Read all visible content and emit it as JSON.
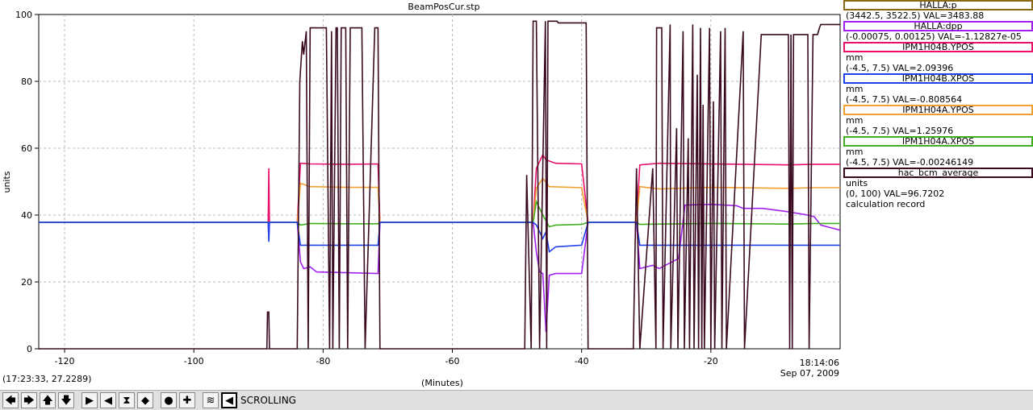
{
  "window": {
    "title": "BeamPosCur.stp"
  },
  "cursor_readout": "(17:23:33, 27.2289)",
  "time": {
    "clock": "18:14:06",
    "date": "Sep 07, 2009"
  },
  "legend": [
    {
      "name": "HALLA:p",
      "color": "#8b6914",
      "lines": [
        "(3442.5, 3522.5) VAL=3483.88"
      ]
    },
    {
      "name": "HALLA:dpp",
      "color": "#a020f0",
      "lines": [
        "(-0.00075, 0.00125) VAL=-1.12827e-05"
      ]
    },
    {
      "name": "IPM1H04B.YPOS",
      "color": "#e8106a",
      "lines": [
        "mm",
        "(-4.5, 7.5) VAL=2.09396"
      ]
    },
    {
      "name": "IPM1H04B.XPOS",
      "color": "#2040e8",
      "lines": [
        "mm",
        "(-4.5, 7.5) VAL=-0.808564"
      ]
    },
    {
      "name": "IPM1H04A.YPOS",
      "color": "#f0a030",
      "lines": [
        "mm",
        "(-4.5, 7.5) VAL=1.25976"
      ]
    },
    {
      "name": "IPM1H04A.XPOS",
      "color": "#40b020",
      "lines": [
        "mm",
        "(-4.5, 7.5) VAL=-0.00246149"
      ]
    },
    {
      "name": "hac_bcm_average",
      "color": "#3a0a20",
      "lines": [
        "units",
        "(0, 100) VAL=96.7202",
        "calculation record"
      ]
    }
  ],
  "toolbar": {
    "buttons": [
      "arrow-left-icon",
      "arrow-right-icon",
      "arrow-up-icon",
      "arrow-down-icon",
      "zoom-in-x-icon",
      "zoom-out-x-icon",
      "zoom-in-y-icon",
      "zoom-out-y-icon",
      "circle-icon",
      "plus-icon",
      "autoscale-icon",
      "scroll-icon"
    ],
    "mode_label": "SCROLLING"
  },
  "chart_data": {
    "type": "line",
    "title": "BeamPosCur.stp",
    "xlabel": "(Minutes)",
    "ylabel": "units",
    "xlim": [
      -124,
      0
    ],
    "ylim": [
      0,
      100
    ],
    "xticks": [
      -120,
      -100,
      -80,
      -60,
      -40,
      -20
    ],
    "yticks": [
      0,
      20,
      40,
      60,
      80,
      100
    ],
    "grid": true,
    "legend_position": "right",
    "series": [
      {
        "name": "HALLA:dpp",
        "color": "#a020f0",
        "x": [
          -124,
          -88.5,
          -88.4,
          -88.3,
          -84,
          -83.5,
          -83,
          -82,
          -81,
          -71.5,
          -71.2,
          -47.5,
          -47,
          -46.5,
          -46,
          -45.5,
          -45,
          -44,
          -40,
          -39,
          -31.5,
          -31,
          -29,
          -28,
          -25,
          -24,
          -20,
          -16,
          -15,
          -12,
          -8,
          -5,
          -4,
          -3,
          -1,
          0
        ],
        "y": [
          37.8,
          37.8,
          33,
          37.8,
          37.8,
          26,
          24,
          24.5,
          23,
          22.5,
          37.8,
          37.8,
          29,
          23,
          22.5,
          5,
          22,
          22.5,
          22.5,
          37.8,
          37.8,
          24,
          25,
          24,
          27,
          43,
          43.2,
          42.8,
          42,
          42,
          41,
          40,
          39.5,
          37,
          36,
          35.5
        ]
      },
      {
        "name": "IPM1H04B.YPOS",
        "color": "#e8106a",
        "x": [
          -124,
          -88.5,
          -88.4,
          -88.3,
          -84,
          -83.5,
          -82,
          -76,
          -71.5,
          -71.2,
          -47.5,
          -47,
          -46,
          -45.5,
          -44,
          -40,
          -39,
          -31.5,
          -31,
          -28,
          -20,
          -8,
          -4,
          0
        ],
        "y": [
          37.8,
          37.8,
          54,
          37.8,
          37.8,
          55.5,
          55.3,
          55.2,
          55.3,
          37.8,
          37.8,
          54,
          58,
          56.5,
          55.5,
          55.3,
          37.8,
          37.8,
          55,
          55.5,
          55.3,
          55,
          55.2,
          55.2
        ]
      },
      {
        "name": "IPM1H04A.YPOS",
        "color": "#f0a030",
        "x": [
          -124,
          -84,
          -83.5,
          -82,
          -76,
          -71.5,
          -71.2,
          -47.5,
          -47,
          -46,
          -45,
          -40,
          -39,
          -31.5,
          -31,
          -28,
          -20,
          -8,
          -4,
          0
        ],
        "y": [
          37.8,
          37.8,
          49.5,
          48.5,
          48.3,
          48.3,
          37.8,
          37.8,
          48,
          51,
          48.5,
          48.2,
          37.8,
          37.8,
          48.5,
          47.8,
          48.3,
          48.0,
          48.2,
          48.2
        ]
      },
      {
        "name": "IPM1H04A.XPOS",
        "color": "#40b020",
        "x": [
          -124,
          -84,
          -83.5,
          -82,
          -76,
          -71.5,
          -71.2,
          -47.5,
          -47,
          -46,
          -45,
          -44,
          -40,
          -39,
          -31.5,
          -31,
          -28,
          -20,
          -8,
          -4,
          0
        ],
        "y": [
          37.8,
          37.8,
          37,
          37.5,
          37.4,
          37.4,
          37.8,
          37.8,
          44,
          40,
          36.5,
          37,
          37.2,
          37.8,
          37.8,
          37.2,
          37.3,
          37.5,
          37.3,
          37.5,
          37.5
        ]
      },
      {
        "name": "IPM1H04B.XPOS",
        "color": "#2040e8",
        "x": [
          -124,
          -88.5,
          -88.4,
          -88.3,
          -84,
          -83.5,
          -82,
          -76,
          -71.5,
          -71.2,
          -47.5,
          -47,
          -46,
          -45.5,
          -45,
          -44,
          -40,
          -39,
          -31.5,
          -31,
          -28,
          -20,
          -8,
          -4,
          0
        ],
        "y": [
          37.8,
          37.8,
          32,
          37.8,
          37.8,
          31,
          31,
          31,
          31,
          37.8,
          37.8,
          37,
          33,
          35,
          29,
          30.5,
          31,
          37.8,
          37.8,
          31,
          31,
          31,
          31,
          31,
          31
        ]
      },
      {
        "name": "hac_bcm_average",
        "color": "#3a0a20",
        "x": [
          -124,
          -88.7,
          -88.6,
          -88.4,
          -88.3,
          -84,
          -83.6,
          -83.2,
          -83,
          -82.6,
          -82.3,
          -82,
          -81.5,
          -81,
          -79.5,
          -79,
          -78.7,
          -78.5,
          -78,
          -77.8,
          -77.5,
          -77.2,
          -76.5,
          -76.2,
          -75.8,
          -75.4,
          -74,
          -73.5,
          -72,
          -71.5,
          -71.2,
          -71,
          -48.8,
          -48.5,
          -47.8,
          -47.5,
          -47,
          -46.5,
          -45.6,
          -45.4,
          -45.2,
          -45,
          -44.2,
          -43.8,
          -43.6,
          -40.5,
          -39.3,
          -39,
          -32,
          -31.5,
          -31,
          -29,
          -28.5,
          -28.4,
          -27.6,
          -27.4,
          -26.3,
          -26.2,
          -25.3,
          -25.1,
          -24.3,
          -24.1,
          -23.5,
          -23.3,
          -22.8,
          -22.6,
          -22.1,
          -21.9,
          -21.6,
          -21.4,
          -21.2,
          -21,
          -20.2,
          -20,
          -19.6,
          -19.4,
          -18.5,
          -18.3,
          -17.8,
          -17.6,
          -15,
          -14.8,
          -12.2,
          -12,
          -11.8,
          -11.6,
          -8,
          -7.8,
          -7.6,
          -7.4,
          -7.2,
          -7,
          -5,
          -4.8,
          -4.2,
          -4,
          -3.5,
          -3.2,
          -3,
          -1,
          0
        ],
        "y": [
          0,
          0,
          11,
          11,
          0,
          0,
          80,
          92,
          88,
          95,
          0,
          96,
          96,
          96,
          96,
          0,
          95,
          0,
          96,
          96,
          0,
          96,
          96,
          0,
          96,
          96,
          96,
          0,
          96,
          96,
          0,
          0,
          0,
          52,
          0,
          98,
          98,
          0,
          98,
          0,
          98,
          98,
          98,
          98,
          97.5,
          97.5,
          97.5,
          0,
          0,
          54,
          0,
          54,
          0,
          96,
          96,
          0,
          97,
          0,
          66,
          0,
          95,
          0,
          63,
          0,
          97,
          0,
          82,
          0,
          96,
          0,
          73,
          0,
          96,
          0,
          74,
          0,
          95,
          0,
          96,
          0,
          95,
          0,
          94,
          94,
          94,
          94,
          94,
          0,
          94,
          0,
          94,
          94,
          94,
          0,
          94,
          94,
          94,
          96,
          97,
          97,
          97
        ]
      }
    ]
  }
}
